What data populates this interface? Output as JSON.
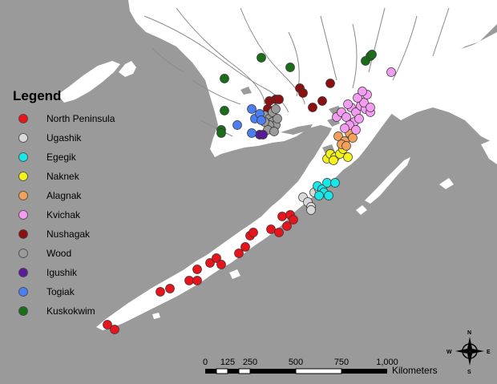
{
  "legend": {
    "title": "Legend",
    "items": [
      {
        "label": "North Peninsula",
        "color": "#e8141b"
      },
      {
        "label": "Ugashik",
        "color": "#d9d9d9"
      },
      {
        "label": "Egegik",
        "color": "#19e6e6"
      },
      {
        "label": "Naknek",
        "color": "#f4f21b"
      },
      {
        "label": "Alagnak",
        "color": "#f2a05a"
      },
      {
        "label": "Kvichak",
        "color": "#f49cf2"
      },
      {
        "label": "Nushagak",
        "color": "#8c1010"
      },
      {
        "label": "Wood",
        "color": "#9a9a9a"
      },
      {
        "label": "Igushik",
        "color": "#5a1a9a"
      },
      {
        "label": "Togiak",
        "color": "#4a7ef2"
      },
      {
        "label": "Kuskokwim",
        "color": "#1a6e1a"
      }
    ]
  },
  "scalebar": {
    "ticks": [
      "0",
      "125",
      "250",
      "500",
      "750",
      "1,000"
    ],
    "unit": "Kilometers"
  },
  "compass": {
    "n": "N",
    "s": "S",
    "e": "E",
    "w": "W"
  },
  "colors": {
    "ocean": "#9a9a9a",
    "land": "#ffffff",
    "rivers": "#8a8a8a"
  }
}
